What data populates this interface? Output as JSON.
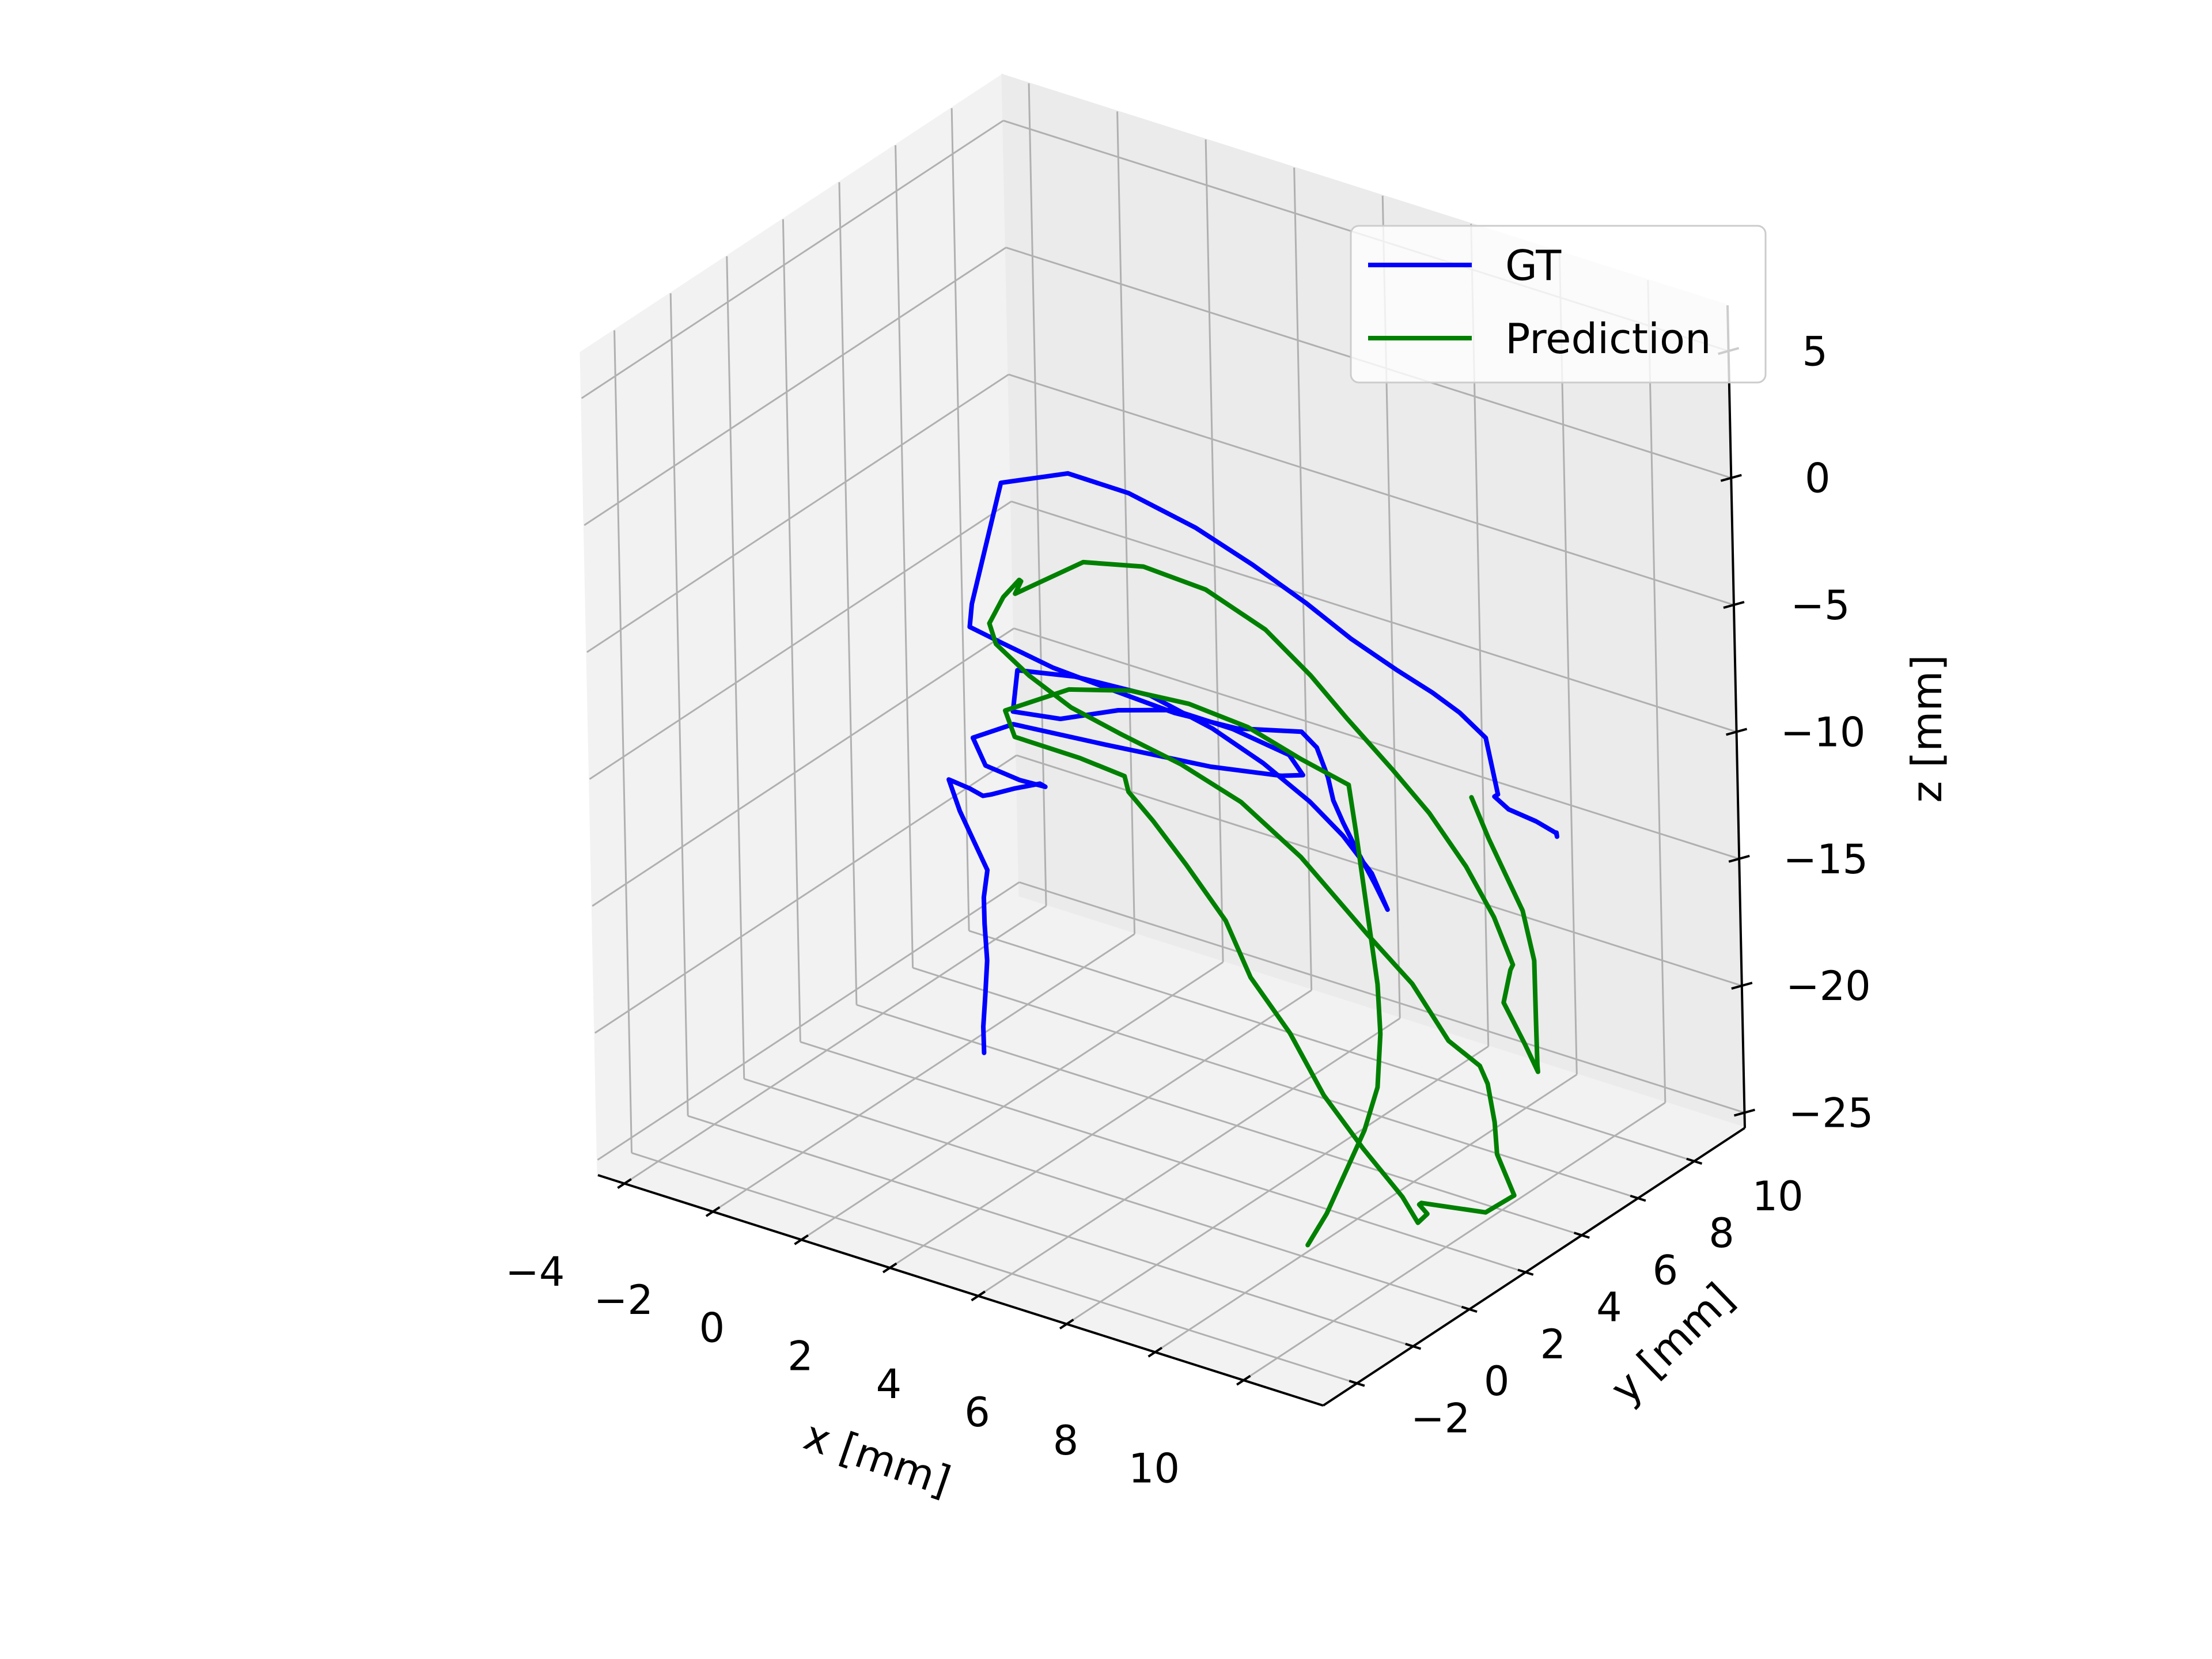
{
  "chart_data": {
    "type": "line",
    "projection": "3d",
    "title": "",
    "xlabel": "x [mm]",
    "ylabel": "y [mm]",
    "zlabel": "z [mm]",
    "xlim": [
      -4.6,
      11.8
    ],
    "ylim": [
      -3.2,
      11.8
    ],
    "zlim": [
      -25.6,
      6.8
    ],
    "x_ticks": [
      -4,
      -2,
      0,
      2,
      4,
      6,
      8,
      10
    ],
    "y_ticks": [
      -2,
      0,
      2,
      4,
      6,
      8,
      10
    ],
    "z_ticks": [
      5,
      0,
      -5,
      -10,
      -15,
      -20,
      -25
    ],
    "x_tick_labels": [
      "−4",
      "−2",
      "0",
      "2",
      "4",
      "6",
      "8",
      "10"
    ],
    "y_tick_labels": [
      "−2",
      "0",
      "2",
      "4",
      "6",
      "8",
      "10"
    ],
    "z_tick_labels": [
      "5",
      "0",
      "−5",
      "−10",
      "−15",
      "−20",
      "−25"
    ],
    "grid": true,
    "legend": {
      "position": "top-right",
      "entries": [
        {
          "label": "GT",
          "color": "#0000ff"
        },
        {
          "label": "Prediction",
          "color": "#008000"
        }
      ]
    },
    "series": [
      {
        "name": "GT",
        "color": "#0000ff",
        "x": [
          1.2,
          1.0,
          0.8,
          0.6,
          0.3,
          0.1,
          0.0,
          -0.3,
          -0.6,
          -0.9,
          -0.5,
          0.0,
          0.4,
          0.9,
          1.3,
          1.1,
          0.2,
          -0.9,
          -1.5,
          -0.9,
          0.8,
          2.8,
          4.2,
          4.7,
          4.2,
          2.8,
          1.4,
          0.2,
          -0.6,
          -0.9,
          0.0,
          1.5,
          3.2,
          4.8,
          6.2,
          7.5,
          8.5,
          9.4,
          10.0,
          9.2,
          8.3,
          7.6,
          7.0,
          6.5,
          6.0,
          5.4,
          3.8,
          2.2,
          0.6,
          -1.0,
          -2.4,
          -3.4,
          -3.6,
          -3.4,
          -2.0,
          -0.5,
          1.2,
          2.8,
          4.4,
          5.8,
          7.2,
          8.4,
          9.4,
          10.5,
          11.4,
          10.8,
          10.6,
          10.7,
          10.5,
          10.0,
          9.6
        ],
        "y": [
          1.5,
          1.8,
          2.2,
          2.6,
          3.0,
          3.3,
          3.6,
          3.6,
          3.6,
          3.7,
          3.8,
          3.5,
          3.2,
          3.2,
          3.5,
          4.0,
          4.5,
          5.0,
          5.5,
          6.0,
          6.6,
          7.2,
          7.5,
          7.5,
          7.8,
          8.0,
          8.1,
          8.0,
          7.2,
          6.0,
          4.8,
          4.5,
          4.5,
          4.2,
          3.8,
          3.4,
          3.0,
          2.6,
          2.2,
          3.0,
          3.8,
          4.4,
          5.0,
          5.6,
          6.0,
          6.4,
          6.6,
          6.9,
          7.2,
          7.6,
          8.0,
          8.4,
          8.8,
          9.6,
          9.8,
          9.6,
          9.3,
          8.8,
          8.2,
          7.6,
          7.0,
          6.4,
          5.8,
          5.0,
          4.0,
          4.8,
          5.6,
          6.4,
          7.4,
          8.2,
          8.8
        ],
        "z": [
          -21.0,
          -20.3,
          -19.5,
          -18.5,
          -17.5,
          -16.8,
          -16.0,
          -15.0,
          -14.0,
          -13.0,
          -13.2,
          -13.0,
          -12.5,
          -12.0,
          -11.8,
          -12.4,
          -13.0,
          -13.4,
          -13.0,
          -12.5,
          -12.8,
          -13.0,
          -12.8,
          -12.5,
          -12.2,
          -12.1,
          -12.2,
          -12.8,
          -13.0,
          -12.0,
          -9.0,
          -8.2,
          -8.0,
          -8.2,
          -8.5,
          -9.0,
          -9.5,
          -10.2,
          -11.0,
          -11.0,
          -10.8,
          -10.5,
          -10.4,
          -10.2,
          -9.6,
          -9.6,
          -10.5,
          -11.0,
          -11.2,
          -11.5,
          -11.6,
          -11.8,
          -11.3,
          -7.0,
          -6.0,
          -5.8,
          -6.0,
          -6.2,
          -6.4,
          -6.6,
          -6.6,
          -6.4,
          -6.2,
          -6.0,
          -7.0,
          -8.0,
          -9.2,
          -10.2,
          -11.5,
          -12.5,
          -13.0
        ]
      },
      {
        "name": "Prediction",
        "color": "#008000",
        "x": [
          8.8,
          8.6,
          8.4,
          8.2,
          8.0,
          7.7,
          7.4,
          7.0,
          6.6,
          6.2,
          5.8,
          4.6,
          3.4,
          2.2,
          1.0,
          -0.2,
          -1.4,
          -1.0,
          0.6,
          2.0,
          2.6,
          3.4,
          4.4,
          5.4,
          6.2,
          7.2,
          8.2,
          9.2,
          10.2,
          10.8,
          10.5,
          9.8,
          9.2,
          10.4,
          10.8,
          10.3,
          10.0,
          9.6,
          9.3,
          8.6,
          7.8,
          6.8,
          5.2,
          3.6,
          2.0,
          0.4,
          -1.0,
          -2.2,
          -3.2,
          -3.6,
          -3.4,
          -2.9,
          -2.6,
          -3.0,
          -1.5,
          0.0,
          1.6,
          3.2,
          4.6,
          5.8,
          7.2,
          8.4,
          9.6,
          10.6,
          11.4,
          11.6,
          11.3,
          11.5,
          11.4,
          11.0,
          10.6,
          10.2,
          9.7,
          9.2,
          8.7,
          8.2
        ],
        "y": [
          1.0,
          2.0,
          3.0,
          4.0,
          4.8,
          5.4,
          5.8,
          6.2,
          6.6,
          7.0,
          7.4,
          7.6,
          7.6,
          7.4,
          7.2,
          6.9,
          6.5,
          6.2,
          6.0,
          5.4,
          4.6,
          4.2,
          3.8,
          3.6,
          3.2,
          3.0,
          2.6,
          2.4,
          2.2,
          1.8,
          2.6,
          3.4,
          4.4,
          4.8,
          5.2,
          5.4,
          5.8,
          6.2,
          6.4,
          6.4,
          6.4,
          6.4,
          6.6,
          7.0,
          7.4,
          7.8,
          8.2,
          8.6,
          9.0,
          9.4,
          9.6,
          9.4,
          9.0,
          9.4,
          9.5,
          9.3,
          9.0,
          8.6,
          8.0,
          7.4,
          6.8,
          6.2,
          5.6,
          5.0,
          4.4,
          4.0,
          4.2,
          4.6,
          5.2,
          5.8,
          6.4,
          7.0,
          7.4,
          7.6,
          7.8,
          8.0
        ],
        "z": [
          -24.0,
          -23.6,
          -22.8,
          -22.0,
          -21.0,
          -19.5,
          -18.0,
          -16.5,
          -15.0,
          -13.5,
          -12.2,
          -12.0,
          -11.4,
          -11.0,
          -11.0,
          -11.4,
          -12.6,
          -13.2,
          -13.0,
          -12.5,
          -12.2,
          -12.6,
          -13.5,
          -15.0,
          -16.5,
          -18.0,
          -19.6,
          -21.0,
          -22.2,
          -22.6,
          -23.0,
          -23.6,
          -24.6,
          -24.6,
          -24.0,
          -22.8,
          -22.0,
          -21.0,
          -20.6,
          -20.0,
          -18.2,
          -16.8,
          -14.8,
          -13.8,
          -13.5,
          -13.5,
          -13.5,
          -13.2,
          -12.8,
          -12.5,
          -11.5,
          -10.4,
          -10.0,
          -11.0,
          -9.0,
          -8.2,
          -8.0,
          -8.4,
          -9.0,
          -9.6,
          -10.4,
          -11.0,
          -12.0,
          -13.0,
          -14.0,
          -13.8,
          -15.4,
          -17.2,
          -18.8,
          -19.2,
          -18.0,
          -16.4,
          -15.0,
          -14.0,
          -13.0,
          -11.8
        ]
      }
    ]
  }
}
